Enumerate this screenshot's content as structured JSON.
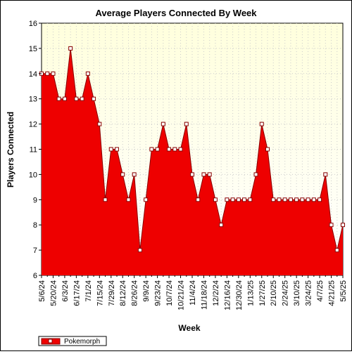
{
  "chart_data": {
    "type": "area",
    "title": "Average Players Connected By Week",
    "xlabel": "Week",
    "ylabel": "Players Connected",
    "ylim": [
      6,
      16
    ],
    "yticks": [
      6,
      7,
      8,
      9,
      10,
      11,
      12,
      13,
      14,
      15,
      16
    ],
    "grid": true,
    "legend_position": "bottom-left",
    "colors": {
      "fill": "#ee0000",
      "line": "#880000",
      "marker_fill": "#ffffff",
      "plot_bg_top": "#ffffdd",
      "plot_bg_bottom": "#ffffff"
    },
    "x_tick_labels": [
      "5/6/24",
      "5/20/24",
      "6/3/24",
      "6/17/24",
      "7/1/24",
      "7/15/24",
      "7/29/24",
      "8/12/24",
      "8/26/24",
      "9/9/24",
      "9/23/24",
      "10/7/24",
      "10/21/24",
      "11/4/24",
      "11/18/24",
      "12/2/24",
      "12/16/24",
      "12/30/24",
      "1/13/25",
      "1/27/25",
      "2/10/25",
      "2/24/25",
      "3/10/25",
      "3/24/25",
      "4/7/25",
      "4/21/25",
      "5/5/25"
    ],
    "series": [
      {
        "name": "Pokemorph",
        "values": [
          14,
          14,
          14,
          13,
          13,
          15,
          13,
          13,
          14,
          13,
          12,
          9,
          11,
          11,
          10,
          9,
          10,
          7,
          9,
          11,
          11,
          12,
          11,
          11,
          11,
          12,
          10,
          9,
          10,
          10,
          9,
          8,
          9,
          9,
          9,
          9,
          9,
          10,
          12,
          11,
          9,
          9,
          9,
          9,
          9,
          9,
          9,
          9,
          9,
          10,
          8,
          7,
          8
        ]
      }
    ]
  }
}
